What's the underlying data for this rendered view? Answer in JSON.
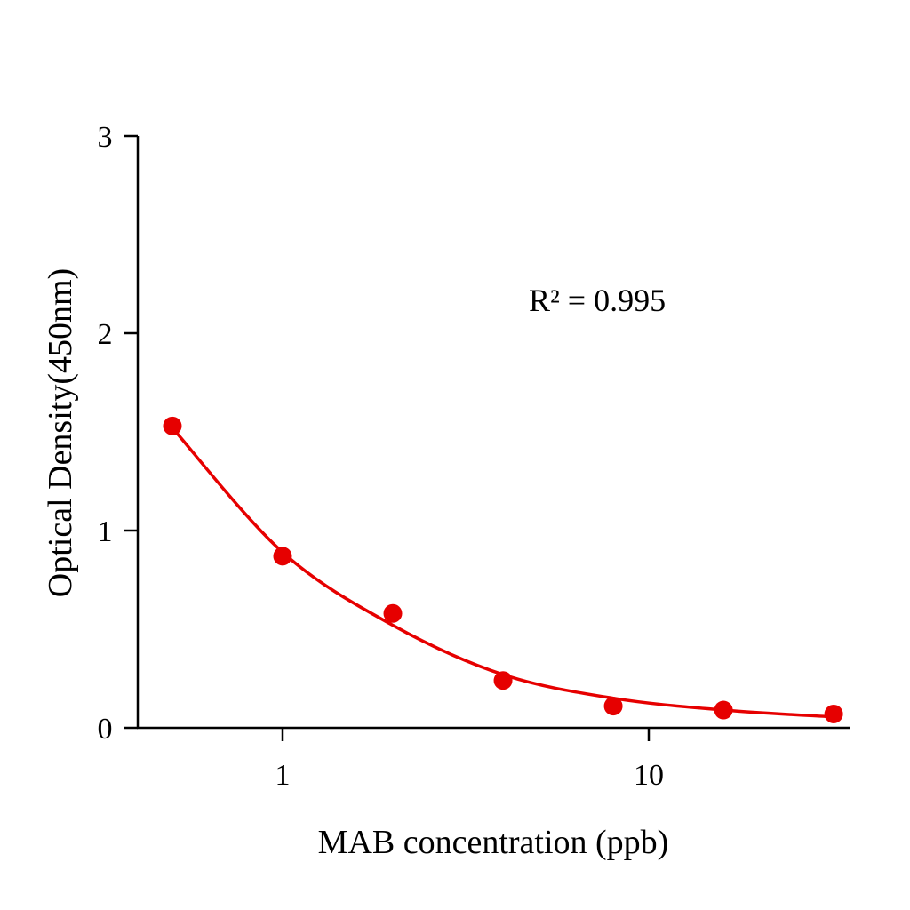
{
  "chart_data": {
    "type": "scatter",
    "title": "",
    "xlabel": "MAB concentration (ppb)",
    "ylabel": "Optical Density(450nm)",
    "x_scale": "log",
    "xlim": [
      0.4,
      35
    ],
    "ylim": [
      0,
      3
    ],
    "x_ticks": [
      {
        "value": 1,
        "label": "1"
      },
      {
        "value": 10,
        "label": "10"
      }
    ],
    "y_ticks": [
      {
        "value": 0,
        "label": "0"
      },
      {
        "value": 1,
        "label": "1"
      },
      {
        "value": 2,
        "label": "2"
      },
      {
        "value": 3,
        "label": "3"
      }
    ],
    "grid": false,
    "annotation": "R² = 0.995",
    "color": "#e60000",
    "points": {
      "x": [
        0.5,
        1,
        2,
        4,
        8,
        16,
        32
      ],
      "y": [
        1.53,
        0.87,
        0.58,
        0.24,
        0.11,
        0.09,
        0.07
      ]
    },
    "fit": {
      "x": [
        0.5,
        1,
        2,
        4,
        8,
        16,
        32
      ],
      "y": [
        1.52,
        0.89,
        0.52,
        0.27,
        0.15,
        0.09,
        0.055
      ]
    }
  }
}
